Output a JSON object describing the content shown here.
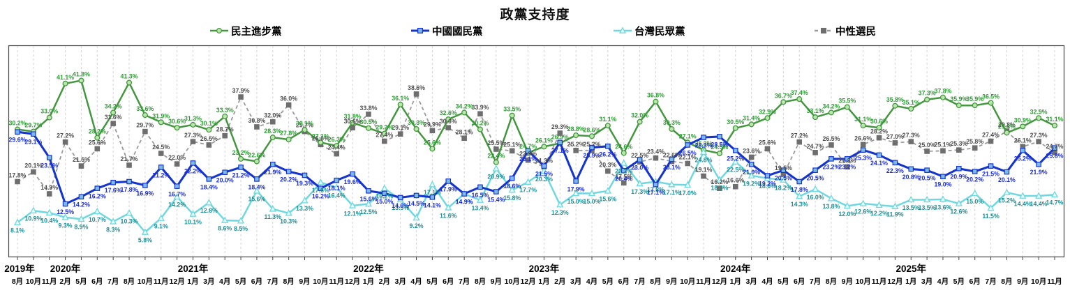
{
  "title": "政黨支持度",
  "legend": [
    {
      "label": "民主進步黨",
      "marker": "circle"
    },
    {
      "label": "中國國民黨",
      "marker": "square"
    },
    {
      "label": "台灣民眾黨",
      "marker": "triangle"
    },
    {
      "label": "中性選民",
      "marker": "square"
    }
  ],
  "chart_data": {
    "type": "line",
    "title": "政黨支持度",
    "ylim": [
      0,
      50
    ],
    "grid": "vertical-dashed",
    "legend_position": "top",
    "categories": [
      "8月",
      "10月",
      "11月",
      "2月",
      "5月",
      "6月",
      "7月",
      "8月",
      "10月",
      "11月",
      "12月",
      "1月",
      "3月",
      "4月",
      "5月",
      "6月",
      "7月",
      "8月",
      "9月",
      "10月",
      "11月",
      "12月",
      "1月",
      "2月",
      "3月",
      "4月",
      "5月",
      "6月",
      "7月",
      "8月",
      "9月",
      "10月",
      "12月",
      "1月",
      "2月",
      "3月",
      "4月",
      "5月",
      "6月",
      "7月",
      "8月",
      "9月",
      "10月",
      "11月",
      "12月",
      "1月",
      "3月",
      "4月",
      "5月",
      "6月",
      "7月",
      "8月",
      "9月",
      "10月",
      "11月",
      "12月",
      "1月",
      "3月",
      "4月",
      "5月",
      "6月",
      "7月",
      "8月",
      "9月",
      "10月",
      "11月"
    ],
    "years": [
      {
        "label": "2019年",
        "index": 0
      },
      {
        "label": "2020年",
        "index": 3
      },
      {
        "label": "2021年",
        "index": 11
      },
      {
        "label": "2022年",
        "index": 22
      },
      {
        "label": "2023年",
        "index": 33
      },
      {
        "label": "2024年",
        "index": 45
      },
      {
        "label": "2025年",
        "index": 56
      }
    ],
    "series": [
      {
        "name": "民主進步黨",
        "marker": "circle",
        "line_color": "#44973f",
        "marker_fill": "#b9e6ad",
        "label_color": "#2f9a35",
        "label_side": "above",
        "dash": "none",
        "values": [
          30.2,
          29.7,
          33.0,
          41.1,
          41.8,
          28.2,
          34.2,
          41.3,
          33.6,
          31.9,
          30.6,
          31.3,
          30.1,
          33.3,
          23.2,
          22.6,
          28.3,
          27.8,
          30.1,
          27.1,
          26.3,
          31.8,
          30.5,
          29.2,
          36.1,
          30.3,
          25.6,
          32.6,
          34.2,
          30.2,
          22.4,
          33.5,
          24.7,
          26.1,
          26.9,
          28.8,
          28.6,
          31.1,
          24.6,
          32.0,
          36.8,
          30.3,
          27.1,
          25.3,
          24.5,
          30.5,
          31.4,
          32.9,
          36.7,
          37.4,
          33.1,
          34.2,
          35.5,
          31.1,
          30.6,
          35.8,
          35.1,
          37.3,
          37.8,
          35.9,
          35.9,
          36.5,
          29.4,
          30.9,
          32.9,
          31.1
        ]
      },
      {
        "name": "中國國民黨",
        "marker": "square",
        "line_color": "#1535cd",
        "marker_fill": "#7cb9e8",
        "label_color": "#1b2ed8",
        "label_side": "below",
        "dash": "none",
        "values": [
          29.6,
          29.1,
          23.5,
          12.5,
          14.2,
          16.2,
          17.6,
          17.8,
          16.9,
          21.2,
          16.7,
          22.2,
          18.4,
          20.0,
          21.2,
          18.4,
          21.9,
          20.2,
          19.3,
          16.2,
          18.1,
          19.6,
          15.6,
          15.0,
          14.0,
          14.5,
          14.1,
          17.9,
          14.9,
          16.5,
          15.4,
          18.6,
          25.1,
          21.5,
          27.1,
          17.9,
          25.9,
          26.2,
          20.4,
          23.0,
          17.1,
          23.1,
          26.5,
          28.3,
          28.5,
          25.2,
          21.9,
          19.2,
          20.5,
          17.8,
          20.5,
          23.2,
          23.2,
          25.3,
          24.1,
          22.3,
          20.8,
          20.5,
          19.0,
          20.9,
          20.2,
          21.5,
          20.1,
          25.2,
          21.9,
          25.8
        ]
      },
      {
        "name": "台灣民眾黨",
        "marker": "triangle",
        "line_color": "#6fd8de",
        "marker_fill": "#e8fdfd",
        "label_color": "#1d8f96",
        "label_side": "below",
        "dash": "none",
        "values": [
          8.1,
          10.9,
          10.4,
          9.3,
          8.9,
          10.7,
          8.3,
          10.3,
          5.8,
          9.1,
          14.2,
          10.1,
          12.8,
          8.6,
          8.5,
          15.6,
          11.3,
          10.3,
          13.3,
          17.6,
          16.4,
          12.1,
          12.5,
          16.2,
          13.5,
          9.2,
          17.1,
          11.6,
          14.9,
          13.4,
          20.9,
          15.8,
          17.7,
          20.3,
          12.3,
          15.0,
          15.0,
          15.6,
          22.2,
          17.3,
          17.8,
          17.1,
          17.0,
          24.8,
          18.2,
          22.5,
          19.2,
          18.6,
          18.2,
          14.3,
          16.0,
          13.8,
          12.0,
          12.6,
          12.2,
          11.9,
          13.5,
          13.5,
          13.6,
          12.6,
          15.0,
          11.5,
          15.2,
          14.4,
          14.4,
          14.7
        ]
      },
      {
        "name": "中性選民",
        "marker": "square",
        "line_color": "#9a9a9a",
        "marker_fill": "#6e6e6e",
        "label_color": "#4f4f4f",
        "label_side": "above",
        "dash": "5,4",
        "values": [
          17.8,
          20.1,
          14.9,
          27.2,
          21.5,
          25.6,
          31.6,
          21.7,
          29.7,
          24.5,
          22.0,
          27.3,
          26.5,
          28.7,
          37.9,
          30.8,
          32.0,
          36.0,
          29.7,
          26.6,
          24.4,
          30.6,
          33.8,
          27.4,
          29.1,
          38.6,
          29.9,
          30.6,
          28.1,
          33.9,
          25.5,
          25.1,
          22.9,
          21.3,
          29.3,
          25.2,
          25.2,
          20.3,
          17.5,
          22.5,
          23.4,
          22.6,
          22.1,
          19.1,
          16.2,
          16.6,
          23.6,
          25.6,
          19.5,
          27.2,
          24.7,
          26.5,
          21.3,
          26.6,
          28.2,
          27.0,
          27.3,
          25.0,
          25.1,
          25.3,
          25.8,
          27.4,
          29.8,
          26.1,
          27.3,
          24.7
        ]
      }
    ]
  }
}
